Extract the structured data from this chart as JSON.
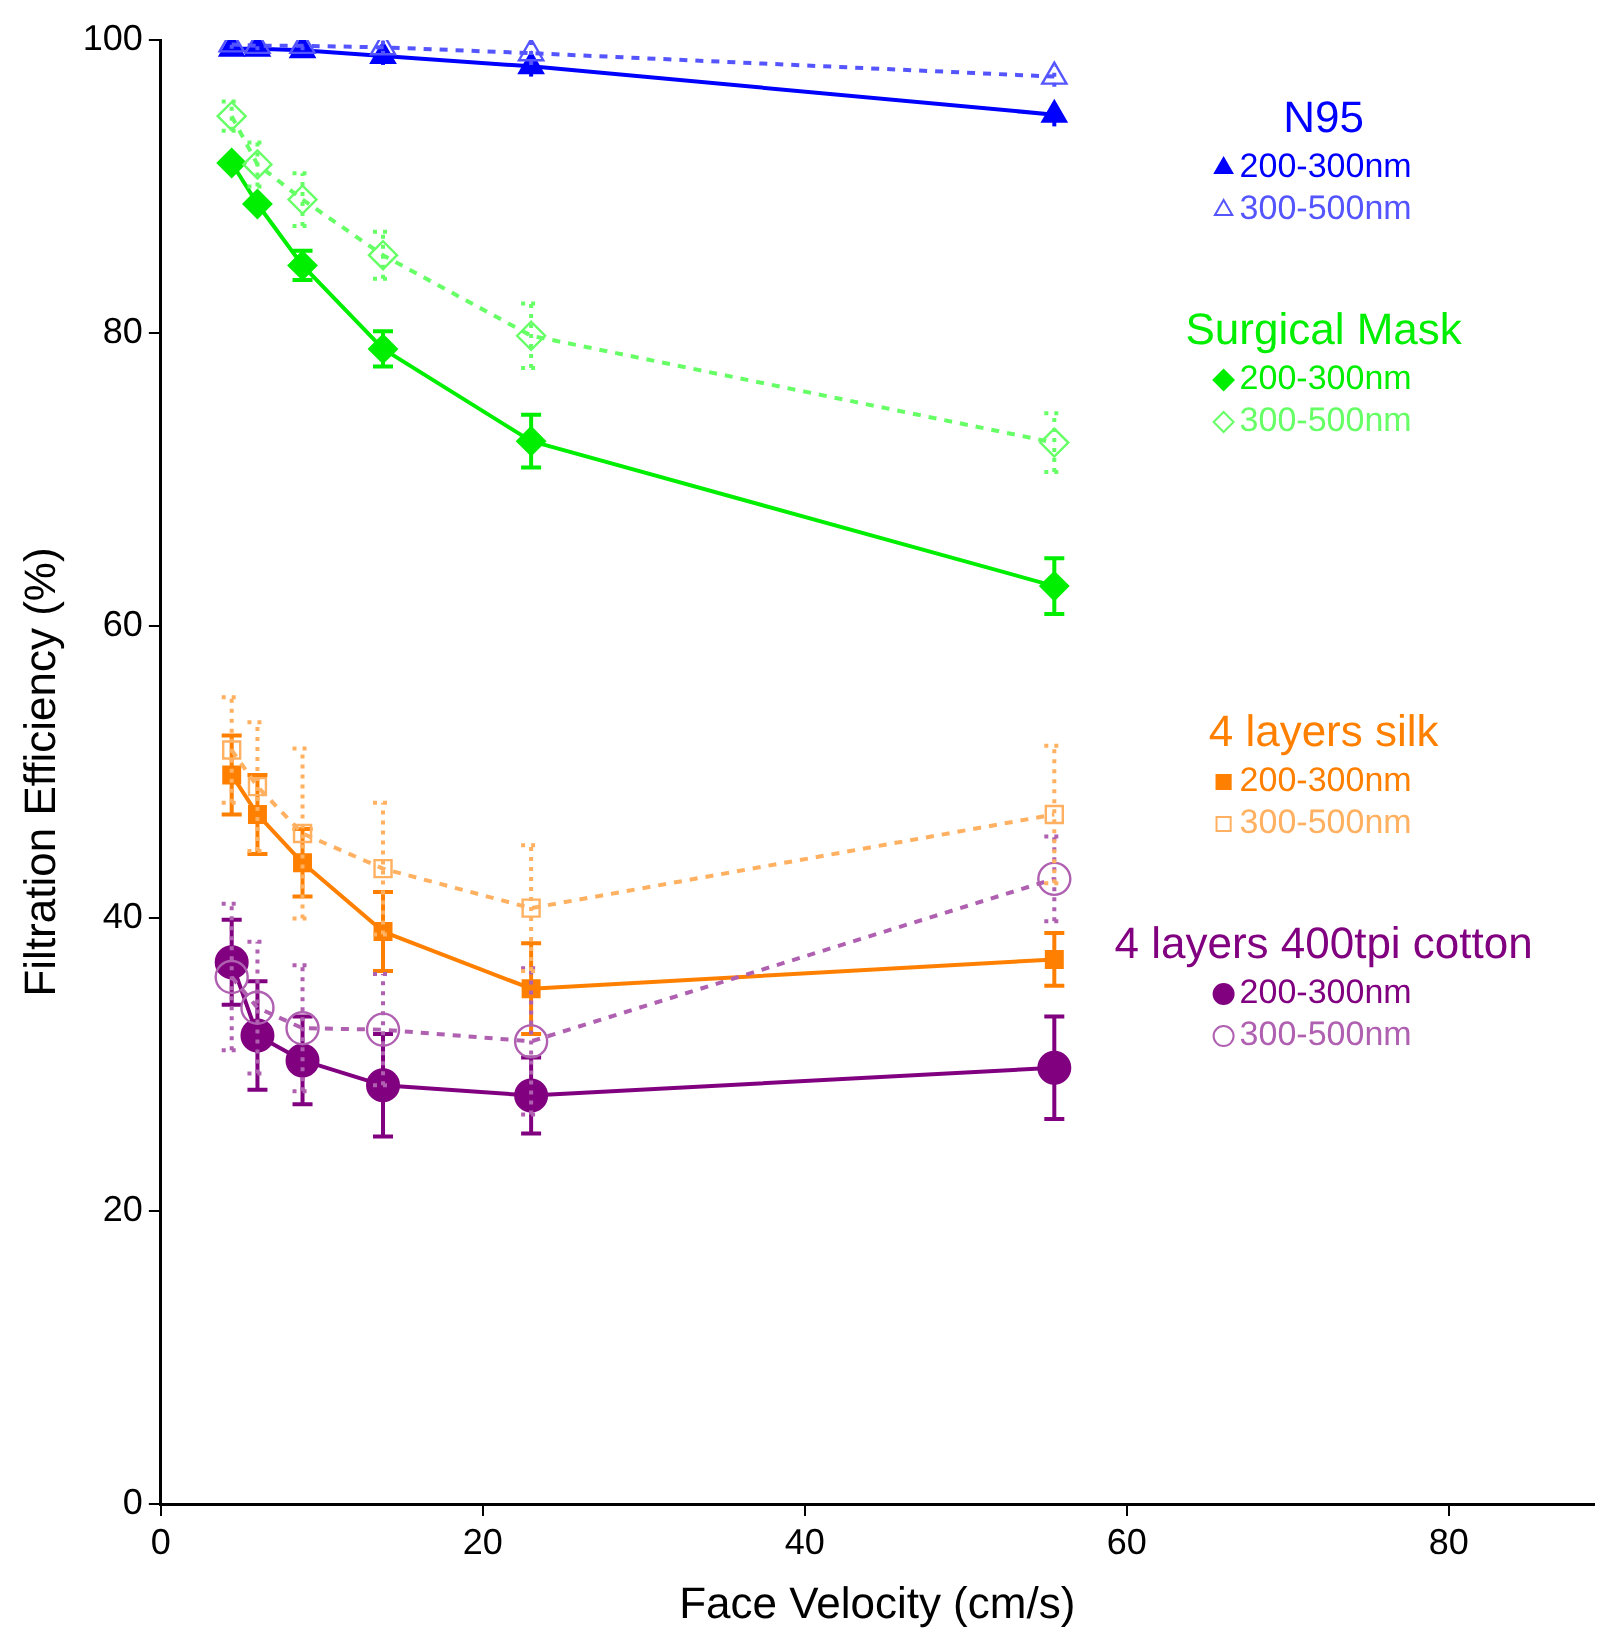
{
  "chart_data": {
    "type": "line",
    "xlabel": "Face Velocity (cm/s)",
    "ylabel": "Filtration Efficiency (%)",
    "xlim": [
      0,
      89
    ],
    "xticks": [
      0,
      20,
      40,
      60,
      80
    ],
    "ylim": [
      0,
      100
    ],
    "yticks": [
      0,
      20,
      40,
      60,
      80,
      100
    ],
    "grid": false,
    "legend": "right",
    "annotations": [
      "N95",
      "Surgical Mask",
      "4 layers silk",
      "4 layers 400tpi cotton"
    ],
    "x": [
      4.4,
      6,
      8.8,
      13.8,
      23,
      55.5
    ],
    "series": [
      {
        "name": "200-300nm",
        "color": "#0000ff",
        "marker": "triangle",
        "line_style": "solid",
        "values": [
          99.4,
          99.4,
          99.3,
          98.9,
          98.2,
          94.9
        ],
        "errors": [
          0.4,
          0.4,
          0.5,
          0.6,
          0.7,
          0.8
        ]
      },
      {
        "name": "300-500nm",
        "color": "#5555ff",
        "marker": "triangle",
        "line_style": "dashed",
        "values": [
          99.7,
          99.6,
          99.6,
          99.5,
          99.1,
          97.5
        ],
        "errors": [
          0.3,
          0.3,
          0.3,
          0.5,
          0.8,
          0.7
        ]
      },
      {
        "name": "200-300nm",
        "color": "#00ee00",
        "marker": "diamond",
        "line_style": "solid",
        "values": [
          91.6,
          88.8,
          84.6,
          78.9,
          72.6,
          62.7
        ],
        "errors": [
          0.7,
          0.8,
          1,
          1.2,
          1.8,
          1.9
        ]
      },
      {
        "name": "300-500nm",
        "color": "#66ff66",
        "marker": "diamond",
        "line_style": "dashed",
        "values": [
          94.8,
          91.5,
          89.1,
          85.3,
          79.8,
          72.5
        ],
        "errors": [
          1,
          1.5,
          1.8,
          1.6,
          2.2,
          2
        ]
      },
      {
        "name": "200-300nm",
        "color": "#ff8000",
        "marker": "square",
        "line_style": "solid",
        "values": [
          49.8,
          47.1,
          43.8,
          39.1,
          35.2,
          37.2
        ],
        "errors": [
          2.7,
          2.7,
          2.3,
          2.7,
          3.1,
          1.8
        ]
      },
      {
        "name": "300-500nm",
        "color": "#ffb060",
        "marker": "square",
        "line_style": "dashed",
        "values": [
          51.5,
          49,
          45.8,
          43.4,
          40.7,
          47.1
        ],
        "errors": [
          3.6,
          4.4,
          5.8,
          4.5,
          4.3,
          4.7
        ]
      },
      {
        "name": "200-300nm",
        "color": "#800080",
        "marker": "circle",
        "line_style": "solid",
        "values": [
          37,
          32,
          30.3,
          28.6,
          27.9,
          29.8
        ],
        "errors": [
          2.9,
          3.7,
          3,
          3.5,
          2.6,
          3.5
        ]
      },
      {
        "name": "300-500nm",
        "color": "#b060b0",
        "marker": "circle",
        "line_style": "dashed",
        "values": [
          36,
          33.9,
          32.5,
          32.4,
          31.6,
          42.7
        ],
        "errors": [
          5,
          4.5,
          4.3,
          3.8,
          5,
          2.9
        ]
      }
    ]
  }
}
